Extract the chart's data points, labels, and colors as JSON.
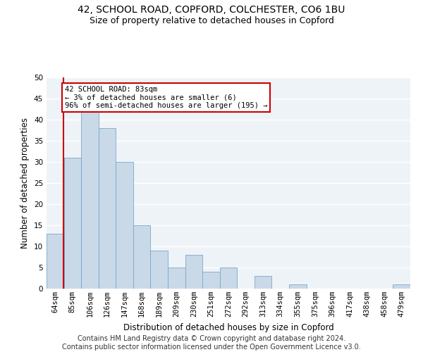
{
  "title_line1": "42, SCHOOL ROAD, COPFORD, COLCHESTER, CO6 1BU",
  "title_line2": "Size of property relative to detached houses in Copford",
  "xlabel": "Distribution of detached houses by size in Copford",
  "ylabel": "Number of detached properties",
  "bar_labels": [
    "64sqm",
    "85sqm",
    "106sqm",
    "126sqm",
    "147sqm",
    "168sqm",
    "189sqm",
    "209sqm",
    "230sqm",
    "251sqm",
    "272sqm",
    "292sqm",
    "313sqm",
    "334sqm",
    "355sqm",
    "375sqm",
    "396sqm",
    "417sqm",
    "438sqm",
    "458sqm",
    "479sqm"
  ],
  "bar_values": [
    13,
    31,
    42,
    38,
    30,
    15,
    9,
    5,
    8,
    4,
    5,
    0,
    3,
    0,
    1,
    0,
    0,
    0,
    0,
    0,
    1
  ],
  "bar_color": "#c9d9e8",
  "bar_edgecolor": "#7ba7c9",
  "ylim": [
    0,
    50
  ],
  "yticks": [
    0,
    5,
    10,
    15,
    20,
    25,
    30,
    35,
    40,
    45,
    50
  ],
  "subject_line_color": "#cc0000",
  "annotation_text": "42 SCHOOL ROAD: 83sqm\n← 3% of detached houses are smaller (6)\n96% of semi-detached houses are larger (195) →",
  "annotation_box_color": "#ffffff",
  "annotation_box_edgecolor": "#cc0000",
  "footer_line1": "Contains HM Land Registry data © Crown copyright and database right 2024.",
  "footer_line2": "Contains public sector information licensed under the Open Government Licence v3.0.",
  "background_color": "#eef3f8",
  "grid_color": "#ffffff",
  "title_fontsize": 10,
  "subtitle_fontsize": 9,
  "tick_fontsize": 7.5,
  "ylabel_fontsize": 8.5,
  "xlabel_fontsize": 8.5,
  "footer_fontsize": 7,
  "annotation_fontsize": 7.5
}
